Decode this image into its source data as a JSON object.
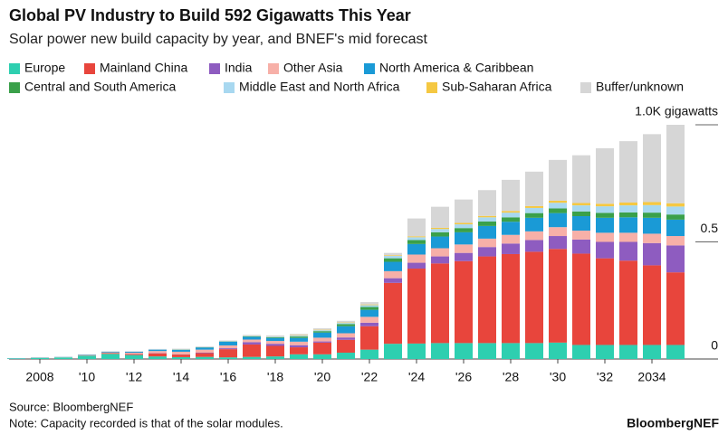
{
  "chart_data": {
    "type": "stacked_bar",
    "title": "Global PV Industry to Build 592 Gigawatts This Year",
    "subtitle": "Solar power new build capacity by year, and BNEF's mid forecast",
    "source": "Source: BloombergNEF",
    "note": "Note: Capacity recorded is that of the solar modules.",
    "brand": "BloombergNEF",
    "categories": [
      null,
      "2008",
      null,
      "'10",
      null,
      "'12",
      null,
      "'14",
      null,
      "'16",
      null,
      "'18",
      null,
      "'20",
      null,
      "'22",
      null,
      "'24",
      null,
      "'26",
      null,
      "'28",
      null,
      "'30",
      null,
      "'32",
      null,
      "2034",
      null
    ],
    "ylim": [
      0,
      1
    ],
    "yticks": [
      0,
      0.5,
      {
        "value": 1,
        "label": "1.0K gigawatts"
      }
    ],
    "series": [
      {
        "name": "Europe",
        "color": "#2ecfb0",
        "values": [
          0.002,
          0.005,
          0.007,
          0.014,
          0.022,
          0.017,
          0.011,
          0.008,
          0.009,
          0.007,
          0.009,
          0.011,
          0.02,
          0.02,
          0.027,
          0.04,
          0.065,
          0.066,
          0.068,
          0.068,
          0.068,
          0.068,
          0.068,
          0.07,
          0.06,
          0.06,
          0.06,
          0.06,
          0.06
        ]
      },
      {
        "name": "Mainland China",
        "color": "#e8453c",
        "values": [
          0,
          0,
          0,
          0.001,
          0.003,
          0.004,
          0.013,
          0.011,
          0.016,
          0.035,
          0.053,
          0.045,
          0.03,
          0.05,
          0.055,
          0.1,
          0.26,
          0.32,
          0.34,
          0.35,
          0.37,
          0.38,
          0.39,
          0.4,
          0.39,
          0.37,
          0.36,
          0.34,
          0.31
        ]
      },
      {
        "name": "India",
        "color": "#8e5cc0",
        "values": [
          0,
          0,
          0,
          0,
          0,
          0.001,
          0.001,
          0.001,
          0.002,
          0.004,
          0.01,
          0.009,
          0.009,
          0.005,
          0.01,
          0.015,
          0.02,
          0.025,
          0.03,
          0.035,
          0.04,
          0.045,
          0.05,
          0.055,
          0.06,
          0.07,
          0.08,
          0.095,
          0.115
        ]
      },
      {
        "name": "Other Asia",
        "color": "#f7b0a8",
        "values": [
          0.001,
          0.001,
          0.001,
          0.002,
          0.003,
          0.005,
          0.009,
          0.011,
          0.013,
          0.012,
          0.011,
          0.012,
          0.015,
          0.016,
          0.018,
          0.025,
          0.03,
          0.035,
          0.035,
          0.036,
          0.036,
          0.037,
          0.037,
          0.038,
          0.038,
          0.039,
          0.039,
          0.04,
          0.04
        ]
      },
      {
        "name": "North America & Caribbean",
        "color": "#1a9ad6",
        "values": [
          0.001,
          0.001,
          0.001,
          0.002,
          0.003,
          0.004,
          0.006,
          0.008,
          0.009,
          0.016,
          0.012,
          0.013,
          0.016,
          0.022,
          0.03,
          0.03,
          0.04,
          0.045,
          0.05,
          0.052,
          0.054,
          0.056,
          0.058,
          0.06,
          0.062,
          0.064,
          0.066,
          0.068,
          0.07
        ]
      },
      {
        "name": "Central and South America",
        "color": "#3aa04a",
        "values": [
          0,
          0,
          0,
          0,
          0,
          0,
          0,
          0.001,
          0.001,
          0.001,
          0.002,
          0.003,
          0.006,
          0.006,
          0.009,
          0.012,
          0.015,
          0.017,
          0.018,
          0.018,
          0.019,
          0.019,
          0.02,
          0.02,
          0.02,
          0.021,
          0.021,
          0.022,
          0.022
        ]
      },
      {
        "name": "Middle East and North Africa",
        "color": "#a8d8f0",
        "values": [
          0,
          0,
          0,
          0,
          0,
          0,
          0.001,
          0.001,
          0.001,
          0.001,
          0.002,
          0.003,
          0.004,
          0.004,
          0.005,
          0.008,
          0.01,
          0.012,
          0.014,
          0.016,
          0.018,
          0.02,
          0.022,
          0.024,
          0.026,
          0.028,
          0.03,
          0.032,
          0.034
        ]
      },
      {
        "name": "Sub-Saharan Africa",
        "color": "#f5c842",
        "values": [
          0,
          0,
          0,
          0,
          0,
          0,
          0,
          0,
          0,
          0,
          0.001,
          0.001,
          0.002,
          0.002,
          0.002,
          0.003,
          0.003,
          0.004,
          0.005,
          0.006,
          0.006,
          0.007,
          0.008,
          0.009,
          0.01,
          0.011,
          0.012,
          0.013,
          0.014
        ]
      },
      {
        "name": "Buffer/unknown",
        "color": "#d6d6d6",
        "values": [
          0,
          0.001,
          0.001,
          0.001,
          0.002,
          0.002,
          0.002,
          0.003,
          0.003,
          0.003,
          0.003,
          0.004,
          0.005,
          0.006,
          0.007,
          0.01,
          0.01,
          0.076,
          0.09,
          0.1,
          0.11,
          0.133,
          0.147,
          0.174,
          0.204,
          0.237,
          0.262,
          0.29,
          0.335
        ]
      }
    ]
  }
}
